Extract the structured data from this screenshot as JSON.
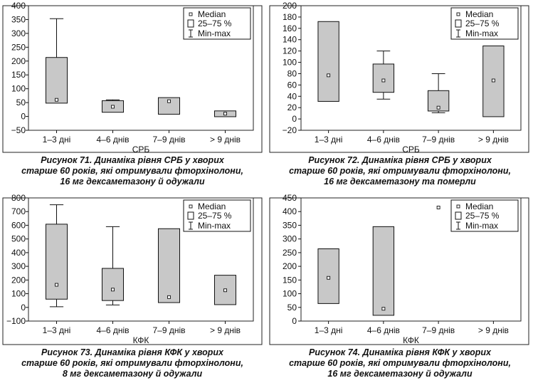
{
  "legend": {
    "median": "Median",
    "iqr": "25–75 %",
    "minmax": "Min-max"
  },
  "colors": {
    "box_fill": "#c8c8c8",
    "stroke": "#111111",
    "frame": "#222222"
  },
  "charts": [
    {
      "caption": [
        "Рисунок 71. Динаміка рівня СРБ у хворих",
        "старше 60 років, які отримували фторхінолони,",
        "16 мг дексаметазону й одужали"
      ]
    },
    {
      "caption": [
        "Рисунок 72. Динаміка рівня СРБ у хворих",
        "старше 60 років, які отримували фторхінолони,",
        "16 мг дексаметазону та померли"
      ]
    },
    {
      "caption": [
        "Рисунок 73. Динаміка рівня КФК у хворих",
        "старше 60 років, які отримували фторхінолони,",
        "8 мг дексаметазону й одужали"
      ]
    },
    {
      "caption": [
        "Рисунок 74. Динаміка рівня КФК у хворих",
        "старше 60 років, які отримували фторхінолони,",
        "16 мг дексаметазону й одужали"
      ]
    }
  ],
  "chart_data": [
    {
      "type": "box",
      "xlabel": "СРБ",
      "categories": [
        "1–3 дні",
        "4–6 днів",
        "7–9 днів",
        "> 9 днів"
      ],
      "ylim": [
        -50,
        400
      ],
      "yticks": [
        -50,
        0,
        50,
        100,
        150,
        200,
        250,
        300,
        350,
        400
      ],
      "grid": false,
      "legend": "top-right",
      "boxes": [
        {
          "q1": 48,
          "q3": 213,
          "median": 60,
          "min": 48,
          "max": 353
        },
        {
          "q1": 15,
          "q3": 57,
          "median": 35,
          "min": 15,
          "max": 60
        },
        {
          "q1": 8,
          "q3": 68,
          "median": 55,
          "min": 8,
          "max": 68
        },
        {
          "q1": -1,
          "q3": 20,
          "median": 10,
          "min": -1,
          "max": 20
        }
      ]
    },
    {
      "type": "box",
      "xlabel": "СРБ",
      "categories": [
        "1–3 дні",
        "4–6 днів",
        "7–9 днів",
        "> 9 днів"
      ],
      "ylim": [
        -20,
        200
      ],
      "yticks": [
        -20,
        0,
        20,
        40,
        60,
        80,
        100,
        120,
        140,
        160,
        180,
        200
      ],
      "grid": false,
      "legend": "top-right",
      "boxes": [
        {
          "q1": 31,
          "q3": 172,
          "median": 77,
          "min": 31,
          "max": 172
        },
        {
          "q1": 47,
          "q3": 97,
          "median": 68,
          "min": 35,
          "max": 120
        },
        {
          "q1": 14,
          "q3": 50,
          "median": 20,
          "min": 11,
          "max": 80
        },
        {
          "q1": 4,
          "q3": 129,
          "median": 68,
          "min": 4,
          "max": 129
        }
      ]
    },
    {
      "type": "box",
      "xlabel": "КФК",
      "categories": [
        "1–3 дні",
        "4–6 днів",
        "7–9 днів",
        "> 9 днів"
      ],
      "ylim": [
        -100,
        800
      ],
      "yticks": [
        -100,
        0,
        100,
        200,
        300,
        400,
        500,
        600,
        700,
        800
      ],
      "grid": false,
      "legend": "top-right",
      "boxes": [
        {
          "q1": 60,
          "q3": 608,
          "median": 165,
          "min": 5,
          "max": 750
        },
        {
          "q1": 50,
          "q3": 285,
          "median": 130,
          "min": 18,
          "max": 590
        },
        {
          "q1": 35,
          "q3": 575,
          "median": 75,
          "min": 35,
          "max": 575
        },
        {
          "q1": 20,
          "q3": 235,
          "median": 125,
          "min": 20,
          "max": 235
        }
      ]
    },
    {
      "type": "box",
      "xlabel": "КФК",
      "categories": [
        "1–3 дні",
        "4–6 днів",
        "7–9 днів",
        "> 9 днів"
      ],
      "ylim": [
        0,
        450
      ],
      "yticks": [
        0,
        50,
        100,
        150,
        200,
        250,
        300,
        350,
        400,
        450
      ],
      "grid": false,
      "legend": "top-right",
      "boxes": [
        {
          "q1": 64,
          "q3": 264,
          "median": 158,
          "min": 64,
          "max": 264
        },
        {
          "q1": 21,
          "q3": 345,
          "median": 45,
          "min": 21,
          "max": 345
        },
        {
          "q1": 415,
          "q3": 415,
          "median": 415,
          "min": 415,
          "max": 415
        },
        null
      ]
    }
  ]
}
